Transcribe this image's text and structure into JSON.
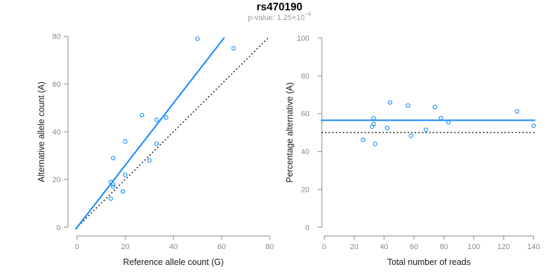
{
  "header": {
    "title": "rs470190",
    "pvalue_label": "p-value: 1.25×10",
    "pvalue_exponent": "−4"
  },
  "colors": {
    "accent_blue": "#1E90FF",
    "reference_black": "#000000",
    "axis_line_gray": "#999999",
    "tick_label_gray": "#8a8a8a",
    "axis_title_color": "#1a1a1a",
    "subtitle_gray": "#9b9b9b",
    "background": "#ffffff"
  },
  "chart_data": [
    {
      "id": "allele-count-scatter",
      "type": "scatter",
      "title": "",
      "xlabel": "Reference allele count (G)",
      "ylabel": "Alternative allele count (A)",
      "xlim": [
        0,
        80
      ],
      "ylim": [
        0,
        80
      ],
      "xticks": [
        0,
        20,
        40,
        60,
        80
      ],
      "yticks": [
        0,
        20,
        40,
        60,
        80
      ],
      "grid": false,
      "legend": false,
      "marker": "open-circle",
      "points": [
        [
          50,
          79
        ],
        [
          65,
          75
        ],
        [
          27,
          47
        ],
        [
          37,
          46
        ],
        [
          33,
          45
        ],
        [
          20,
          36
        ],
        [
          33,
          35
        ],
        [
          15,
          29
        ],
        [
          30,
          28
        ],
        [
          20,
          22
        ],
        [
          14,
          19
        ],
        [
          15,
          18
        ],
        [
          15,
          17
        ],
        [
          19,
          15
        ],
        [
          14,
          12
        ]
      ],
      "fit_line": {
        "kind": "segment",
        "x1": -0.5,
        "y1": -0.7,
        "x2": 61,
        "y2": 79.3,
        "style": "solid",
        "color_key": "accent_blue"
      },
      "reference_line": {
        "kind": "segment",
        "x1": 0.5,
        "y1": 0.5,
        "x2": 79.3,
        "y2": 79.3,
        "style": "dotted",
        "color_key": "reference_black",
        "meaning": "identity y=x"
      }
    },
    {
      "id": "percentage-reads-scatter",
      "type": "scatter",
      "title": "",
      "xlabel": "Total number of reads",
      "ylabel": "Percentage alternative (A)",
      "xlim": [
        0,
        140
      ],
      "ylim": [
        0,
        100
      ],
      "xticks": [
        0,
        20,
        40,
        60,
        80,
        100,
        120,
        140
      ],
      "yticks": [
        0,
        20,
        40,
        60,
        80,
        100
      ],
      "grid": false,
      "legend": false,
      "marker": "open-circle",
      "points": [
        [
          129,
          61.2
        ],
        [
          140,
          53.6
        ],
        [
          74,
          63.5
        ],
        [
          83,
          55.4
        ],
        [
          78,
          57.7
        ],
        [
          56,
          64.3
        ],
        [
          68,
          51.5
        ],
        [
          44,
          65.9
        ],
        [
          58,
          48.3
        ],
        [
          42,
          52.4
        ],
        [
          33,
          57.6
        ],
        [
          33,
          54.5
        ],
        [
          32,
          53.1
        ],
        [
          34,
          44.1
        ],
        [
          26,
          46.2
        ]
      ],
      "fit_line": {
        "kind": "hline",
        "y": 56.5,
        "style": "solid",
        "color_key": "accent_blue"
      },
      "reference_line": {
        "kind": "hline",
        "y": 50,
        "style": "dotted",
        "color_key": "reference_black",
        "meaning": "null 50%"
      }
    }
  ]
}
